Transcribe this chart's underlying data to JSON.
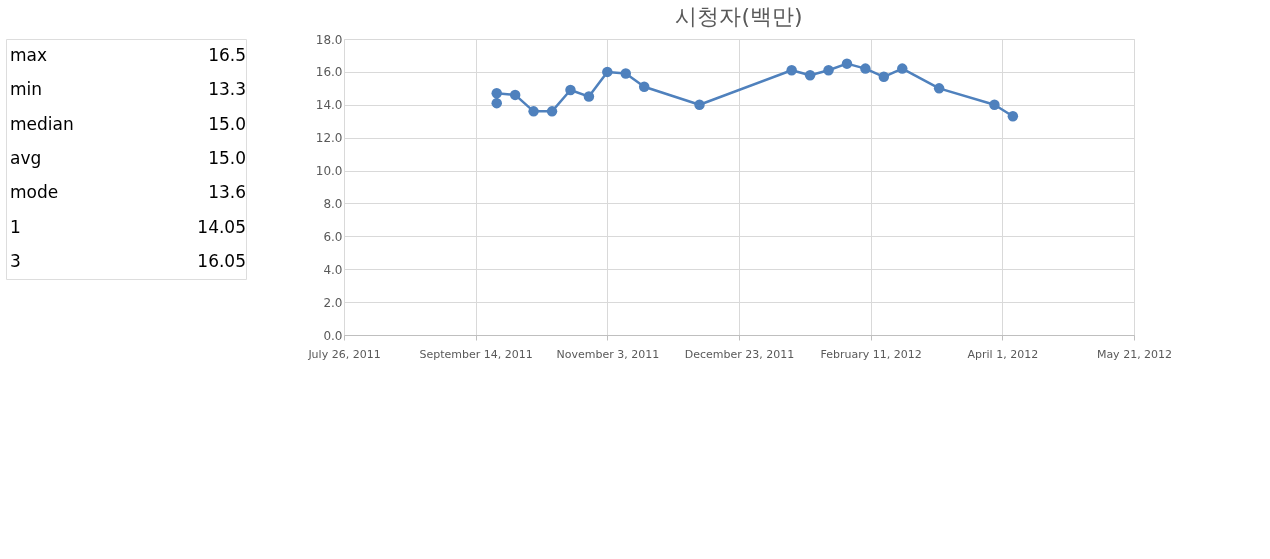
{
  "chart_data": {
    "type": "line",
    "title": "시청자(백만)",
    "x": [
      "2011-09-22",
      "2011-09-22",
      "2011-09-29",
      "2011-10-06",
      "2011-10-13",
      "2011-10-20",
      "2011-10-27",
      "2011-11-03",
      "2011-11-10",
      "2011-11-17",
      "2011-12-08",
      "2012-01-12",
      "2012-01-19",
      "2012-01-26",
      "2012-02-02",
      "2012-02-09",
      "2012-02-16",
      "2012-02-23",
      "2012-03-08",
      "2012-03-29",
      "2012-04-05"
    ],
    "series": [
      {
        "color": "#4f81bd",
        "values": [
          14.1,
          14.7,
          14.6,
          13.6,
          13.6,
          14.9,
          14.5,
          16.0,
          15.9,
          15.1,
          14.0,
          16.1,
          15.8,
          16.1,
          16.5,
          16.2,
          15.7,
          16.2,
          15.0,
          14.0,
          13.3
        ]
      }
    ],
    "xlim": [
      "2011-07-26",
      "2012-05-21"
    ],
    "xticks": [
      {
        "value": "2011-07-26",
        "label": "July 26, 2011"
      },
      {
        "value": "2011-09-14",
        "label": "September 14, 2011"
      },
      {
        "value": "2011-11-03",
        "label": "November 3, 2011"
      },
      {
        "value": "2011-12-23",
        "label": "December 23, 2011"
      },
      {
        "value": "2012-02-11",
        "label": "February 11, 2012"
      },
      {
        "value": "2012-04-01",
        "label": "April 1, 2012"
      },
      {
        "value": "2012-05-21",
        "label": "May 21, 2012"
      }
    ],
    "ylim": [
      0,
      18
    ],
    "yticks": [
      {
        "value": 0,
        "label": "0.0"
      },
      {
        "value": 2,
        "label": "2.0"
      },
      {
        "value": 4,
        "label": "4.0"
      },
      {
        "value": 6,
        "label": "6.0"
      },
      {
        "value": 8,
        "label": "8.0"
      },
      {
        "value": 10,
        "label": "10.0"
      },
      {
        "value": 12,
        "label": "12.0"
      },
      {
        "value": 14,
        "label": "14.0"
      },
      {
        "value": 16,
        "label": "16.0"
      },
      {
        "value": 18,
        "label": "18.0"
      }
    ],
    "grid": true,
    "marker": "circle",
    "line_style": "solid",
    "legend": false,
    "annotations": [
      "max",
      "16.5",
      "min",
      "13.3",
      "median",
      "15.0",
      "avg",
      "15.0",
      "mode",
      "13.6",
      "1",
      "14.05",
      "3",
      "16.05"
    ]
  }
}
